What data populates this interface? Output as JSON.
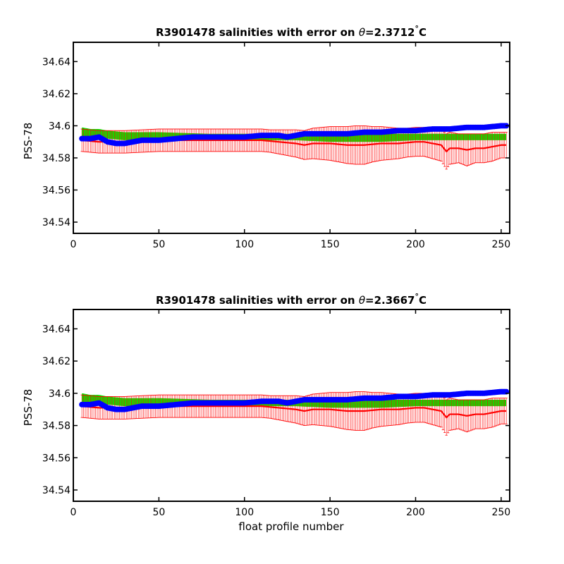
{
  "chart_data": [
    {
      "type": "line",
      "title": "R3901478 salinities with error on θ=2.3712°C",
      "title_parts": {
        "prefix": "R3901478 salinities with error on ",
        "theta": "θ",
        "value": "=2.3712",
        "degree": "°",
        "unit": "C"
      },
      "xlabel": "",
      "ylabel": "PSS-78",
      "xlim": [
        0,
        255
      ],
      "ylim": [
        34.533,
        34.652
      ],
      "xticks": [
        0,
        50,
        100,
        150,
        200,
        250
      ],
      "xtick_labels": [
        "0",
        "50",
        "100",
        "150",
        "200",
        "250"
      ],
      "yticks": [
        34.54,
        34.56,
        34.58,
        34.6,
        34.62,
        34.64
      ],
      "ytick_labels": [
        "34.54",
        "34.56",
        "34.58",
        "34.6",
        "34.62",
        "34.64"
      ],
      "x_range": [
        5,
        253
      ],
      "series": [
        {
          "role": "calibrated-salinity",
          "color": "#ff0000",
          "x": [
            5,
            15,
            20,
            30,
            50,
            70,
            90,
            100,
            110,
            120,
            130,
            135,
            140,
            150,
            160,
            170,
            180,
            190,
            200,
            205,
            210,
            215,
            218,
            220,
            225,
            230,
            235,
            240,
            245,
            250,
            253
          ],
          "values": [
            34.591,
            34.59,
            34.59,
            34.59,
            34.591,
            34.591,
            34.591,
            34.591,
            34.591,
            34.59,
            34.589,
            34.588,
            34.589,
            34.589,
            34.588,
            34.588,
            34.589,
            34.589,
            34.59,
            34.59,
            34.589,
            34.588,
            34.584,
            34.586,
            34.586,
            34.585,
            34.586,
            34.586,
            34.587,
            34.588,
            34.588
          ],
          "error_x": [
            5,
            15,
            25,
            35,
            45,
            55,
            65,
            75,
            85,
            95,
            105,
            115,
            125,
            135,
            145,
            155,
            165,
            170,
            175,
            185,
            195,
            205,
            215,
            218,
            220,
            225,
            230,
            235,
            240,
            245,
            250,
            253
          ],
          "error_half_width": [
            0.007,
            0.007,
            0.007,
            0.007,
            0.007,
            0.007,
            0.007,
            0.007,
            0.007,
            0.007,
            0.007,
            0.007,
            0.008,
            0.009,
            0.01,
            0.011,
            0.012,
            0.012,
            0.011,
            0.01,
            0.009,
            0.009,
            0.01,
            0.011,
            0.01,
            0.009,
            0.01,
            0.009,
            0.009,
            0.009,
            0.008,
            0.008
          ]
        },
        {
          "role": "mapped-salinity-error-band",
          "color": "#00ee00",
          "x": [
            5,
            10,
            15,
            20,
            30,
            50,
            80,
            100,
            130,
            150,
            180,
            200,
            220,
            240,
            253
          ],
          "upper": [
            34.599,
            34.598,
            34.598,
            34.597,
            34.596,
            34.596,
            34.595,
            34.595,
            34.595,
            34.595,
            34.595,
            34.595,
            34.595,
            34.595,
            34.595
          ],
          "lower": [
            34.593,
            34.593,
            34.593,
            34.592,
            34.591,
            34.591,
            34.591,
            34.591,
            34.591,
            34.59,
            34.59,
            34.591,
            34.591,
            34.591,
            34.591
          ]
        },
        {
          "role": "uncalibrated-salinity",
          "color": "#0000ff",
          "x": [
            5,
            10,
            15,
            20,
            25,
            30,
            35,
            40,
            50,
            60,
            70,
            80,
            90,
            100,
            110,
            120,
            125,
            130,
            135,
            140,
            150,
            160,
            170,
            180,
            190,
            200,
            210,
            220,
            230,
            240,
            250,
            253
          ],
          "values": [
            34.592,
            34.592,
            34.593,
            34.59,
            34.589,
            34.589,
            34.59,
            34.591,
            34.591,
            34.592,
            34.593,
            34.593,
            34.593,
            34.593,
            34.594,
            34.594,
            34.593,
            34.594,
            34.595,
            34.595,
            34.595,
            34.595,
            34.596,
            34.596,
            34.597,
            34.597,
            34.598,
            34.598,
            34.599,
            34.599,
            34.6,
            34.6
          ]
        }
      ]
    },
    {
      "type": "line",
      "title": "R3901478 salinities with error on θ=2.3667°C",
      "title_parts": {
        "prefix": "R3901478 salinities with error on ",
        "theta": "θ",
        "value": "=2.3667",
        "degree": "°",
        "unit": "C"
      },
      "xlabel": "float profile number",
      "ylabel": "PSS-78",
      "xlim": [
        0,
        255
      ],
      "ylim": [
        34.533,
        34.652
      ],
      "xticks": [
        0,
        50,
        100,
        150,
        200,
        250
      ],
      "xtick_labels": [
        "0",
        "50",
        "100",
        "150",
        "200",
        "250"
      ],
      "yticks": [
        34.54,
        34.56,
        34.58,
        34.6,
        34.62,
        34.64
      ],
      "ytick_labels": [
        "34.54",
        "34.56",
        "34.58",
        "34.6",
        "34.62",
        "34.64"
      ],
      "x_range": [
        5,
        253
      ],
      "series": [
        {
          "role": "calibrated-salinity",
          "color": "#ff0000",
          "x": [
            5,
            15,
            20,
            30,
            50,
            70,
            90,
            100,
            110,
            120,
            130,
            135,
            140,
            150,
            160,
            170,
            180,
            190,
            200,
            205,
            210,
            215,
            218,
            220,
            225,
            230,
            235,
            240,
            245,
            250,
            253
          ],
          "values": [
            34.592,
            34.591,
            34.591,
            34.591,
            34.592,
            34.592,
            34.592,
            34.592,
            34.592,
            34.591,
            34.59,
            34.589,
            34.59,
            34.59,
            34.589,
            34.589,
            34.59,
            34.59,
            34.591,
            34.591,
            34.59,
            34.589,
            34.585,
            34.587,
            34.587,
            34.586,
            34.587,
            34.587,
            34.588,
            34.589,
            34.589
          ],
          "error_x": [
            5,
            15,
            25,
            35,
            45,
            55,
            65,
            75,
            85,
            95,
            105,
            115,
            125,
            135,
            145,
            155,
            165,
            170,
            175,
            185,
            195,
            205,
            215,
            218,
            220,
            225,
            230,
            235,
            240,
            245,
            250,
            253
          ],
          "error_half_width": [
            0.007,
            0.007,
            0.007,
            0.007,
            0.007,
            0.007,
            0.007,
            0.007,
            0.007,
            0.007,
            0.007,
            0.007,
            0.008,
            0.009,
            0.01,
            0.011,
            0.012,
            0.012,
            0.011,
            0.01,
            0.009,
            0.009,
            0.01,
            0.011,
            0.01,
            0.009,
            0.01,
            0.009,
            0.009,
            0.009,
            0.008,
            0.008
          ]
        },
        {
          "role": "mapped-salinity-error-band",
          "color": "#00ee00",
          "x": [
            5,
            10,
            15,
            20,
            30,
            50,
            80,
            100,
            130,
            150,
            180,
            200,
            220,
            240,
            253
          ],
          "upper": [
            34.6,
            34.599,
            34.599,
            34.598,
            34.597,
            34.597,
            34.596,
            34.596,
            34.596,
            34.596,
            34.596,
            34.596,
            34.596,
            34.596,
            34.596
          ],
          "lower": [
            34.594,
            34.594,
            34.594,
            34.593,
            34.592,
            34.592,
            34.592,
            34.592,
            34.592,
            34.591,
            34.591,
            34.592,
            34.592,
            34.592,
            34.592
          ]
        },
        {
          "role": "uncalibrated-salinity",
          "color": "#0000ff",
          "x": [
            5,
            10,
            15,
            20,
            25,
            30,
            35,
            40,
            50,
            60,
            70,
            80,
            90,
            100,
            110,
            120,
            125,
            130,
            135,
            140,
            150,
            160,
            170,
            180,
            190,
            200,
            210,
            220,
            230,
            240,
            250,
            253
          ],
          "values": [
            34.593,
            34.593,
            34.594,
            34.591,
            34.59,
            34.59,
            34.591,
            34.592,
            34.592,
            34.593,
            34.594,
            34.594,
            34.594,
            34.594,
            34.595,
            34.595,
            34.594,
            34.595,
            34.596,
            34.596,
            34.596,
            34.596,
            34.597,
            34.597,
            34.598,
            34.598,
            34.599,
            34.599,
            34.6,
            34.6,
            34.601,
            34.601
          ]
        }
      ]
    }
  ]
}
